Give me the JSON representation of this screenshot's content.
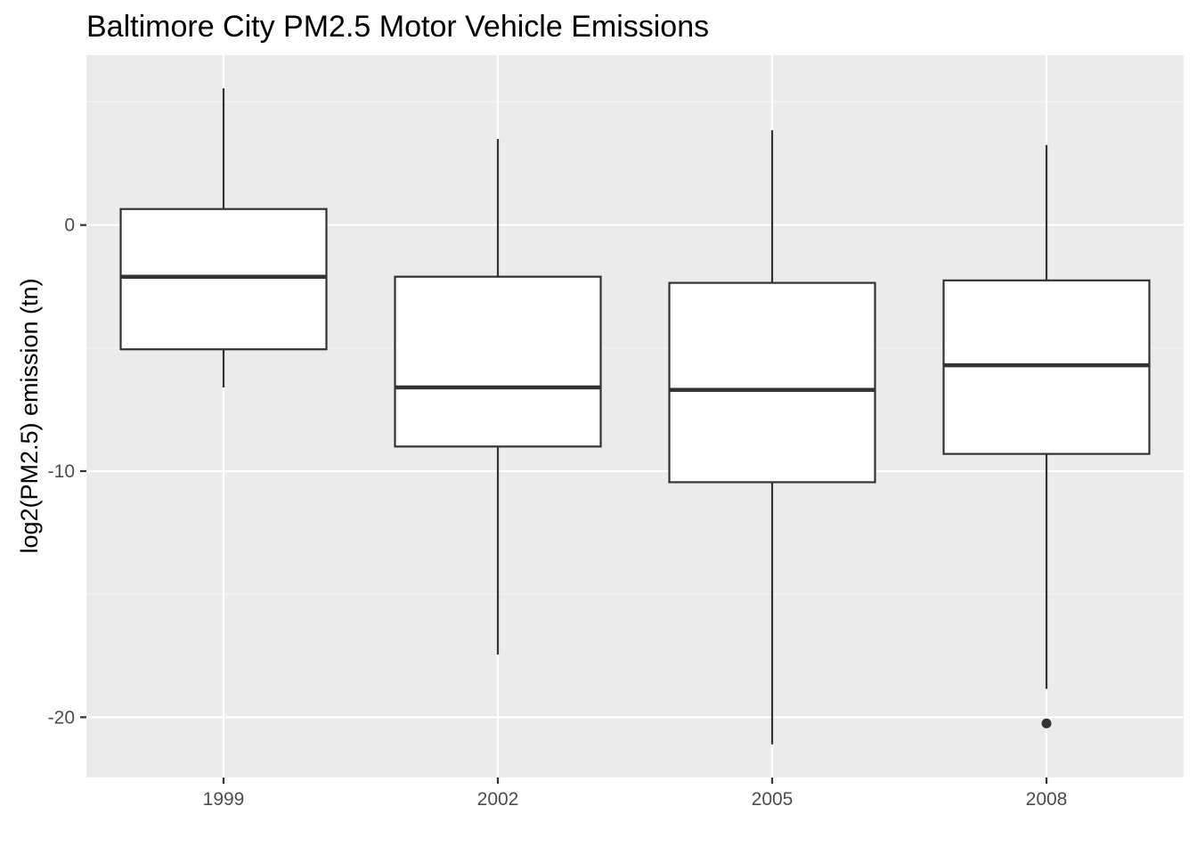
{
  "chart_data": {
    "type": "boxplot",
    "title": "Baltimore City PM2.5 Motor Vehicle Emissions",
    "xlabel": "",
    "ylabel": "log2(PM2.5) emission (tn)",
    "categories": [
      "1999",
      "2002",
      "2005",
      "2008"
    ],
    "boxes": [
      {
        "category": "1999",
        "whisker_low": -6.6,
        "q1": -5.05,
        "median": -2.1,
        "q3": 0.65,
        "whisker_high": 5.55,
        "outliers": []
      },
      {
        "category": "2002",
        "whisker_low": -17.45,
        "q1": -9.0,
        "median": -6.6,
        "q3": -2.1,
        "whisker_high": 3.5,
        "outliers": []
      },
      {
        "category": "2005",
        "whisker_low": -21.1,
        "q1": -10.45,
        "median": -6.7,
        "q3": -2.35,
        "whisker_high": 3.85,
        "outliers": []
      },
      {
        "category": "2008",
        "whisker_low": -18.85,
        "q1": -9.3,
        "median": -5.7,
        "q3": -2.25,
        "whisker_high": 3.25,
        "outliers": [
          -20.25
        ]
      }
    ],
    "y_ticks": [
      0,
      -10,
      -20
    ],
    "y_tick_labels": [
      "0",
      "-10",
      "-20"
    ],
    "ylim": [
      -22.45,
      6.9
    ],
    "grid": true,
    "colors": {
      "panel_background": "#ebebeb",
      "grid_major": "#ffffff",
      "grid_minor": "#f5f5f5",
      "box_fill": "#ffffff",
      "box_stroke": "#333333",
      "tick_mark": "#333333"
    }
  }
}
